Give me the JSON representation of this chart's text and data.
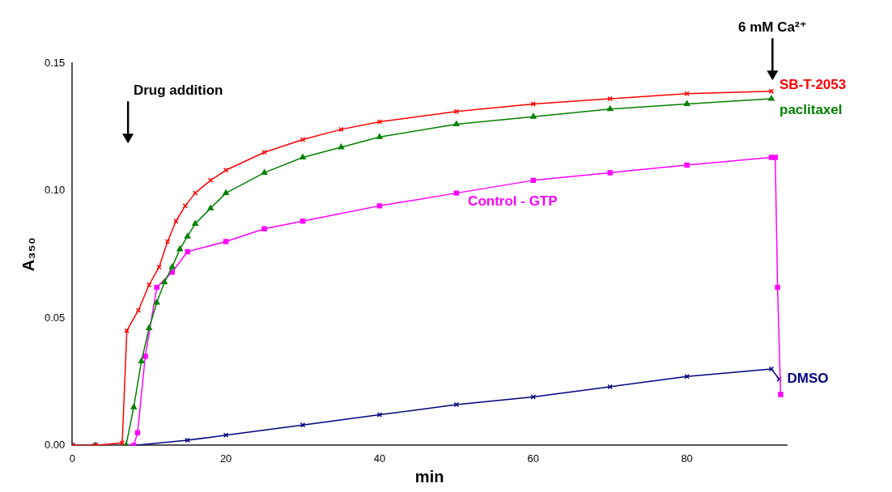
{
  "chart_data": {
    "type": "line",
    "xlabel": "min",
    "ylabel": "A₃₅₀",
    "xlim": [
      0,
      93
    ],
    "xticks": [
      0,
      20,
      40,
      60,
      80
    ],
    "ylim": [
      0,
      0.15
    ],
    "yticks": [
      {
        "value": 0,
        "label": "0.00"
      },
      {
        "value": 0.05,
        "label": "0.05"
      },
      {
        "value": 0.1,
        "label": "0.10"
      },
      {
        "value": 0.15,
        "label": "0.15"
      }
    ],
    "grid": false,
    "legend": false,
    "annotations": [
      "Drug addition",
      "6 mM Ca²⁺"
    ],
    "series": [
      {
        "name": "SB-T-2053",
        "color": "#ff0000",
        "marker": "cross",
        "x": [
          0,
          3,
          6.5,
          7.1,
          8.6,
          10,
          11.3,
          12.4,
          13.5,
          14.7,
          16,
          18,
          20,
          25,
          30,
          35,
          40,
          50,
          60,
          70,
          80,
          91
        ],
        "values": [
          0,
          0,
          0.001,
          0.045,
          0.053,
          0.063,
          0.07,
          0.08,
          0.088,
          0.094,
          0.099,
          0.104,
          0.108,
          0.115,
          0.12,
          0.124,
          0.127,
          0.131,
          0.134,
          0.136,
          0.138,
          0.139
        ]
      },
      {
        "name": "paclitaxel",
        "color": "#008000",
        "marker": "triangle",
        "x": [
          0,
          3,
          7,
          8,
          9,
          10,
          11,
          12,
          13,
          14,
          15,
          16,
          18,
          20,
          25,
          30,
          35,
          40,
          50,
          60,
          70,
          80,
          91
        ],
        "values": [
          0,
          0,
          0,
          0.015,
          0.033,
          0.046,
          0.056,
          0.064,
          0.07,
          0.077,
          0.082,
          0.087,
          0.093,
          0.099,
          0.107,
          0.113,
          0.117,
          0.121,
          0.126,
          0.129,
          0.132,
          0.134,
          0.136
        ]
      },
      {
        "name": "Control - GTP",
        "color": "#ff00ff",
        "marker": "square",
        "x": [
          0,
          3,
          8,
          8.5,
          9.5,
          11,
          13,
          15,
          20,
          25,
          30,
          40,
          50,
          60,
          70,
          80,
          91,
          91.5,
          91.8,
          92.2
        ],
        "values": [
          0,
          0,
          0,
          0.005,
          0.035,
          0.062,
          0.068,
          0.076,
          0.08,
          0.085,
          0.088,
          0.094,
          0.099,
          0.104,
          0.107,
          0.11,
          0.113,
          0.113,
          0.062,
          0.02
        ]
      },
      {
        "name": "DMSO",
        "color": "#000080",
        "marker": "cross",
        "x": [
          8,
          15,
          20,
          30,
          40,
          50,
          60,
          70,
          80,
          91,
          92
        ],
        "values": [
          0,
          0.002,
          0.004,
          0.008,
          0.012,
          0.016,
          0.019,
          0.023,
          0.027,
          0.03,
          0.026
        ]
      }
    ]
  }
}
